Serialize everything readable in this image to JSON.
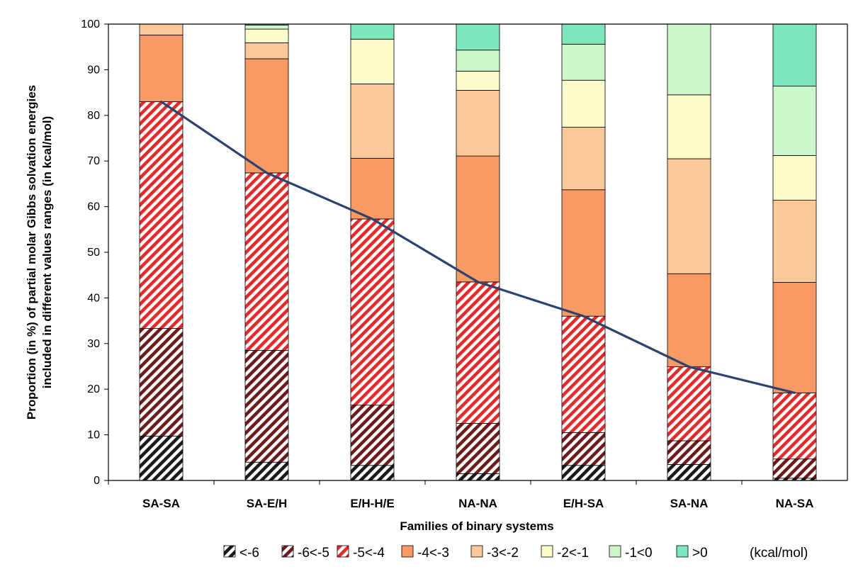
{
  "chart_data": {
    "type": "bar",
    "stacked": true,
    "title": "",
    "xlabel": "Families of binary systems",
    "ylabel_lines": [
      "Proportion (in %) of partial molar Gibbs solvation energies",
      "included in different values ranges (in kcal/mol)"
    ],
    "ylim": [
      0,
      100
    ],
    "yticks": [
      0,
      10,
      20,
      30,
      40,
      50,
      60,
      70,
      80,
      90,
      100
    ],
    "categories": [
      "SA-SA",
      "SA-E/H",
      "E/H-H/E",
      "NA-NA",
      "E/H-SA",
      "SA-NA",
      "NA-SA"
    ],
    "series": [
      {
        "name": "<-6",
        "color": "#1a1a1a",
        "pattern": "hatch",
        "values": [
          9.7,
          4.0,
          3.3,
          1.5,
          3.3,
          3.5,
          0.5
        ]
      },
      {
        "name": "-6<-5",
        "color": "#6b1b1b",
        "pattern": "hatch",
        "values": [
          23.6,
          24.5,
          13.2,
          11.0,
          7.2,
          5.2,
          4.2
        ]
      },
      {
        "name": "-5<-4",
        "color": "#e32b2b",
        "pattern": "hatch",
        "values": [
          49.7,
          38.9,
          40.8,
          31.0,
          25.5,
          16.2,
          14.5
        ]
      },
      {
        "name": "-4<-3",
        "color": "#f79a64",
        "pattern": "solid",
        "values": [
          14.6,
          25.0,
          13.3,
          27.6,
          27.7,
          20.4,
          24.2
        ]
      },
      {
        "name": "-3<-2",
        "color": "#fbc89a",
        "pattern": "solid",
        "values": [
          2.4,
          3.5,
          16.3,
          14.4,
          13.7,
          25.2,
          18.0
        ]
      },
      {
        "name": "-2<-1",
        "color": "#fdfccb",
        "pattern": "solid",
        "values": [
          0.0,
          3.0,
          9.8,
          4.2,
          10.3,
          14.0,
          9.8
        ]
      },
      {
        "name": "-1<0",
        "color": "#cdf6cb",
        "pattern": "solid",
        "values": [
          0.0,
          0.9,
          0.0,
          4.6,
          7.9,
          15.5,
          15.2
        ]
      },
      {
        "name": ">0",
        "color": "#7de6bc",
        "pattern": "solid",
        "values": [
          0.0,
          0.2,
          3.3,
          5.7,
          4.4,
          0.0,
          13.6
        ]
      }
    ],
    "line": {
      "color": "#2e4270",
      "values": [
        83.0,
        67.4,
        57.3,
        43.5,
        36.0,
        24.9,
        19.2
      ]
    },
    "legend_unit": "(kcal/mol)",
    "legend_position": "bottom",
    "grid": false
  }
}
